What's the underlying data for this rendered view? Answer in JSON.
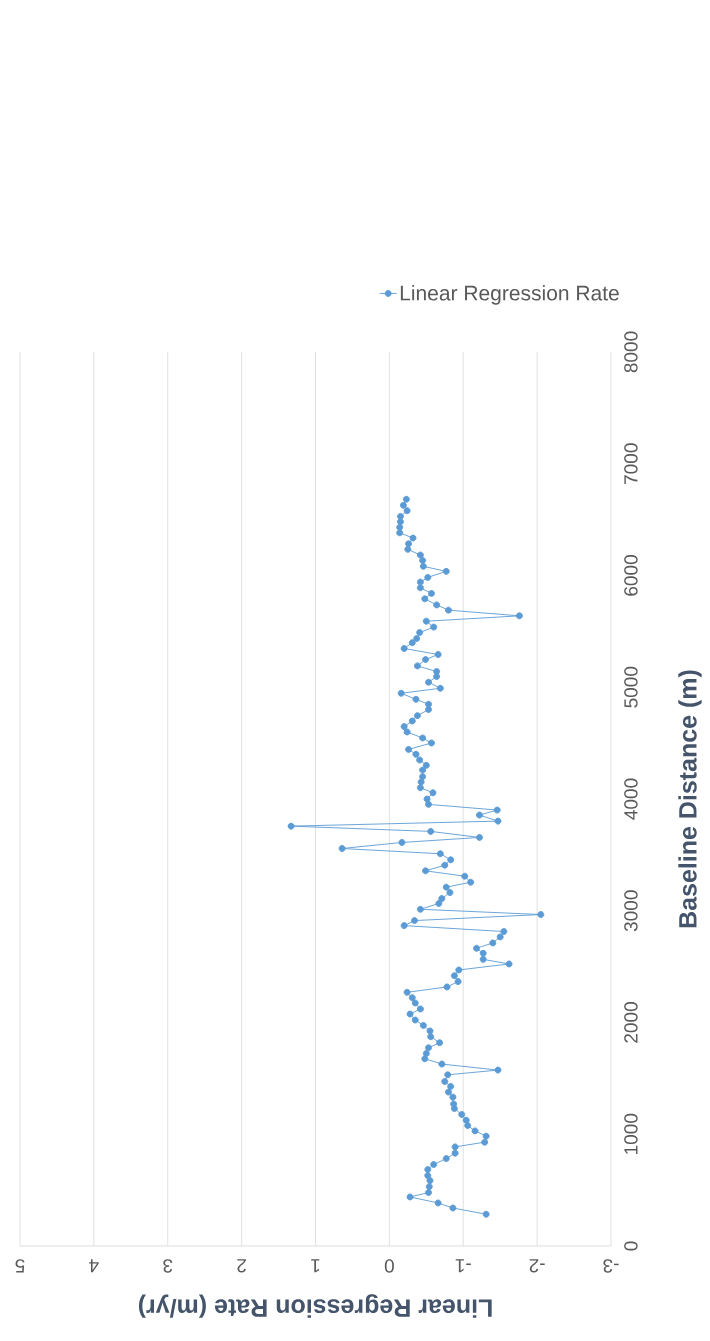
{
  "chart_data": {
    "type": "line",
    "xlabel": "Linear Regression Rate (m/yr)",
    "ylabel": "Baseline Distance (m)",
    "series": [
      {
        "name": "Linear Regression Rate",
        "color": "#5b9bd5",
        "x": [
          -1.31,
          -0.86,
          -0.66,
          -0.28,
          -0.53,
          -0.54,
          -0.55,
          -0.52,
          -0.52,
          -0.6,
          -0.77,
          -0.89,
          -0.89,
          -1.29,
          -1.31,
          -1.16,
          -1.06,
          -1.04,
          -0.98,
          -0.88,
          -0.87,
          -0.86,
          -0.8,
          -0.83,
          -0.75,
          -0.79,
          -1.47,
          -0.71,
          -0.48,
          -0.5,
          -0.53,
          -0.68,
          -0.56,
          -0.55,
          -0.46,
          -0.35,
          -0.28,
          -0.42,
          -0.35,
          -0.31,
          -0.24,
          -0.78,
          -0.93,
          -0.88,
          -0.94,
          -1.62,
          -1.27,
          -1.27,
          -1.18,
          -1.4,
          -1.5,
          -1.55,
          -0.2,
          -0.34,
          -2.05,
          -0.42,
          -0.67,
          -0.71,
          -0.82,
          -0.77,
          -1.1,
          -1.02,
          -0.49,
          -0.75,
          -0.83,
          -0.69,
          0.64,
          -0.17,
          -1.22,
          -0.56,
          1.33,
          -1.47,
          -1.22,
          -1.46,
          -0.53,
          -0.51,
          -0.59,
          -0.42,
          -0.43,
          -0.45,
          -0.45,
          -0.5,
          -0.41,
          -0.36,
          -0.26,
          -0.57,
          -0.45,
          -0.24,
          -0.2,
          -0.31,
          -0.38,
          -0.53,
          -0.53,
          -0.36,
          -0.16,
          -0.69,
          -0.53,
          -0.64,
          -0.64,
          -0.38,
          -0.49,
          -0.66,
          -0.2,
          -0.31,
          -0.37,
          -0.41,
          -0.6,
          -0.5,
          -1.76,
          -0.8,
          -0.64,
          -0.48,
          -0.57,
          -0.42,
          -0.42,
          -0.52,
          -0.77,
          -0.46,
          -0.45,
          -0.42,
          -0.25,
          -0.26,
          -0.32,
          -0.14,
          -0.14,
          -0.15,
          -0.15,
          -0.24,
          -0.19,
          -0.23
        ],
        "values": [
          284,
          340,
          385,
          439,
          478,
          531,
          585,
          630,
          684,
          729,
          782,
          831,
          887,
          929,
          983,
          1030,
          1078,
          1126,
          1177,
          1230,
          1270,
          1332,
          1377,
          1428,
          1472,
          1532,
          1574,
          1628,
          1676,
          1723,
          1774,
          1819,
          1873,
          1924,
          1974,
          2022,
          2076,
          2121,
          2175,
          2222,
          2270,
          2318,
          2366,
          2419,
          2470,
          2524,
          2565,
          2619,
          2664,
          2712,
          2766,
          2814,
          2867,
          2912,
          2966,
          3013,
          3065,
          3109,
          3163,
          3211,
          3255,
          3309,
          3357,
          3408,
          3456,
          3510,
          3557,
          3611,
          3656,
          3710,
          3757,
          3802,
          3856,
          3901,
          3952,
          3999,
          4056,
          4101,
          4151,
          4200,
          4259,
          4301,
          4349,
          4400,
          4444,
          4501,
          4546,
          4600,
          4648,
          4698,
          4746,
          4800,
          4848,
          4892,
          4946,
          4991,
          5045,
          5096,
          5141,
          5191,
          5248,
          5293,
          5347,
          5399,
          5436,
          5490,
          5538,
          5591,
          5639,
          5690,
          5737,
          5791,
          5840,
          5890,
          5941,
          5983,
          6037,
          6082,
          6135,
          6183,
          6234,
          6284,
          6335,
          6382,
          6431,
          6481,
          6529,
          6580,
          6628,
          6682
        ]
      }
    ],
    "xlim": [
      5,
      -3
    ],
    "ylim": [
      0,
      8000
    ],
    "xticks": [
      5,
      4,
      3,
      2,
      1,
      0,
      -1,
      -2,
      -3
    ],
    "yticks": [
      0,
      1000,
      2000,
      3000,
      4000,
      5000,
      6000,
      7000,
      8000
    ],
    "grid": "x",
    "legend": "top right",
    "marker": "circle",
    "line_style": "solid"
  }
}
